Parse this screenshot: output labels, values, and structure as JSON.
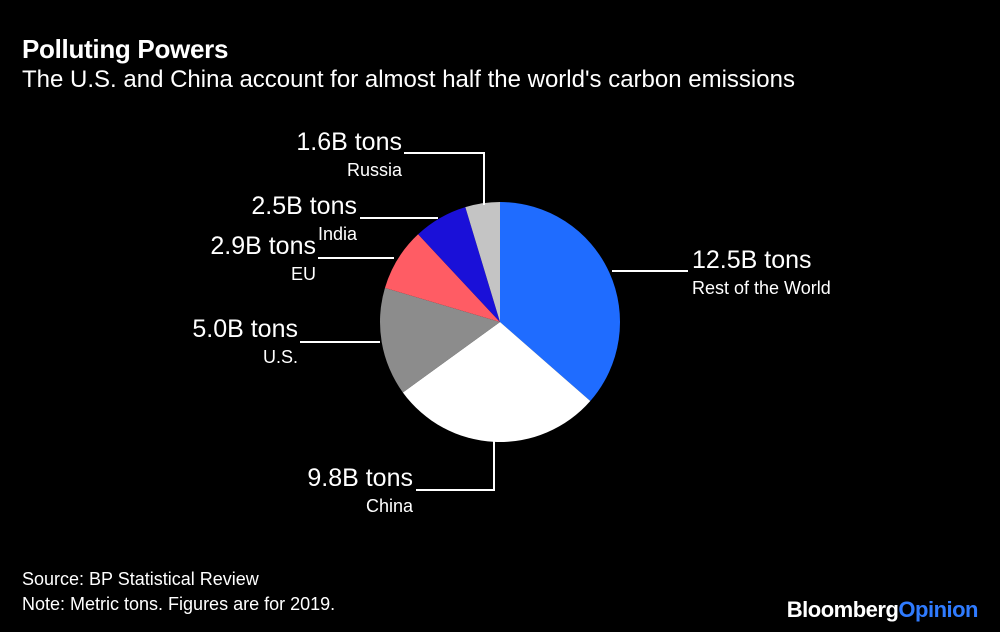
{
  "title": "Polluting Powers",
  "subtitle": "The U.S. and China account for almost half the world's carbon emissions",
  "source": "Source: BP Statistical Review",
  "note": "Note: Metric tons. Figures are for 2019.",
  "logo": {
    "part1": "Bloomberg",
    "part2": "Opinion"
  },
  "colors": {
    "background": "#000000",
    "accent": "#1f6cff"
  },
  "chart_data": {
    "type": "pie",
    "unit": "billion metric tons",
    "slices": [
      {
        "name": "Rest of the World",
        "value": 12.5,
        "label": "12.5B tons",
        "color": "#1f6cff"
      },
      {
        "name": "China",
        "value": 9.8,
        "label": "9.8B tons",
        "color": "#ffffff"
      },
      {
        "name": "U.S.",
        "value": 5.0,
        "label": "5.0B tons",
        "color": "#8c8c8c"
      },
      {
        "name": "EU",
        "value": 2.9,
        "label": "2.9B tons",
        "color": "#ff5c64"
      },
      {
        "name": "India",
        "value": 2.5,
        "label": "2.5B tons",
        "color": "#1a10d8"
      },
      {
        "name": "Russia",
        "value": 1.6,
        "label": "1.6B tons",
        "color": "#c4c4c4"
      }
    ]
  }
}
